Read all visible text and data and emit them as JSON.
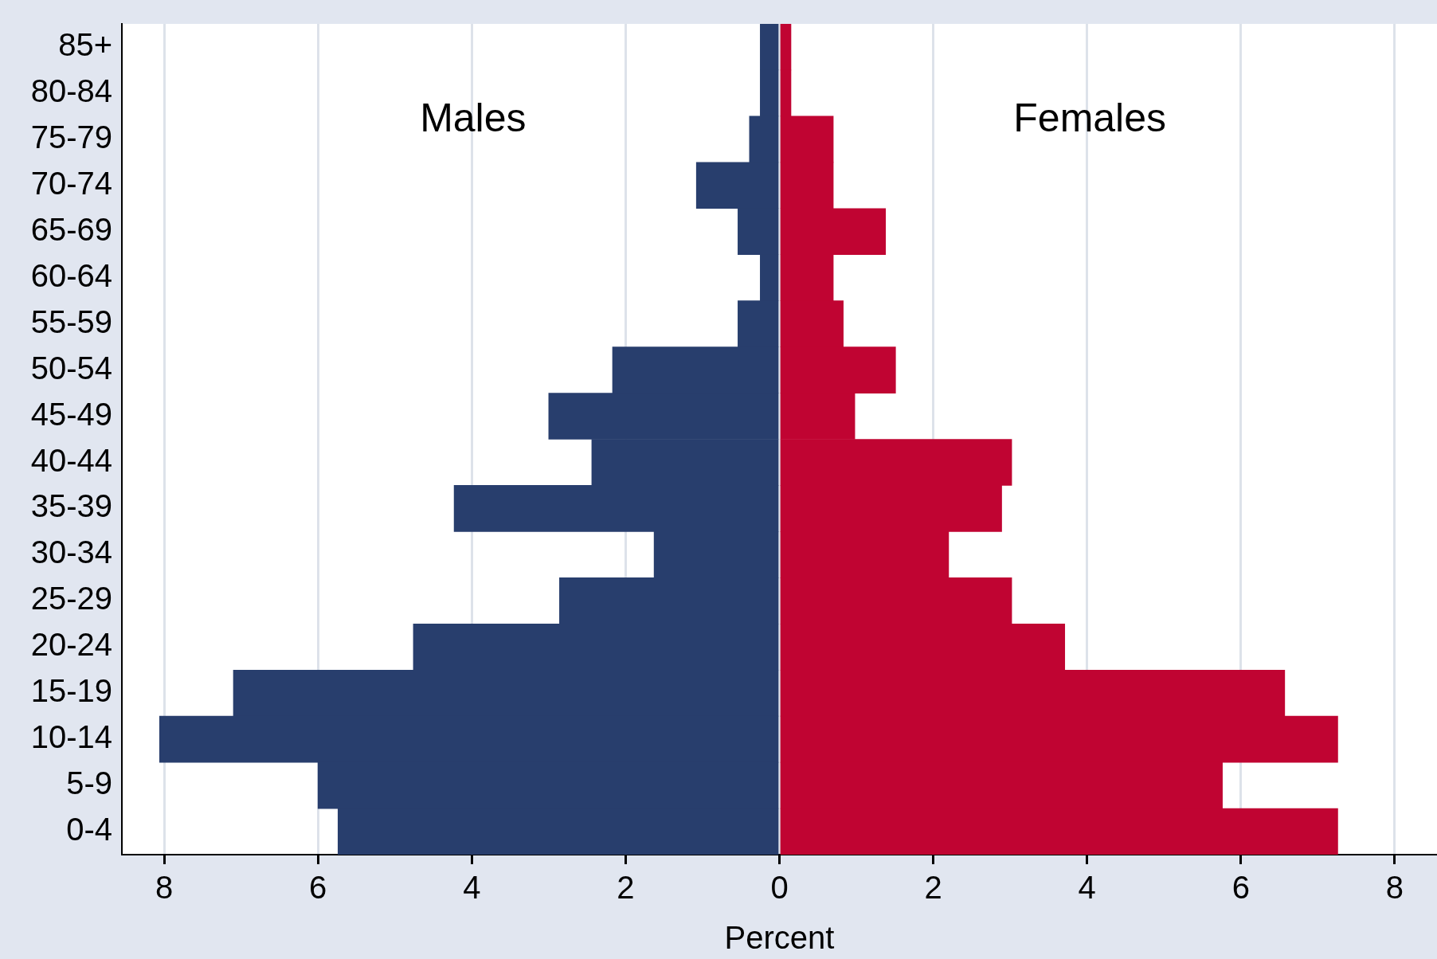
{
  "chart_data": {
    "type": "bar",
    "orientation": "horizontal",
    "stacked": true,
    "xlabel": "Percent",
    "categories": [
      "85+",
      "80-84",
      "75-79",
      "70-74",
      "65-69",
      "60-64",
      "55-59",
      "50-54",
      "45-49",
      "40-44",
      "35-39",
      "30-34",
      "25-29",
      "20-24",
      "15-19",
      "10-14",
      "5-9",
      "0-4"
    ],
    "series": [
      {
        "color": "#283e6d",
        "values": [
          -0.25,
          -0.25,
          -0.39,
          -1.08,
          -0.54,
          -0.25,
          -0.54,
          -2.17,
          -3.0,
          -2.44,
          -4.23,
          -1.63,
          -2.86,
          -4.76,
          -7.1,
          -8.06,
          -6.0,
          -5.74
        ]
      },
      {
        "color": "#c00432",
        "values": [
          0.15,
          0.15,
          0.7,
          0.7,
          1.38,
          0.7,
          0.83,
          1.51,
          0.98,
          3.02,
          2.89,
          2.2,
          3.02,
          3.71,
          6.57,
          7.26,
          5.76,
          7.26
        ]
      }
    ],
    "xlim": [
      -8.55,
      8.55
    ],
    "xticks": [
      {
        "value": -8,
        "label": "8"
      },
      {
        "value": -6,
        "label": "6"
      },
      {
        "value": -4,
        "label": "4"
      },
      {
        "value": -2,
        "label": "2"
      },
      0,
      2,
      4,
      6,
      8
    ],
    "grid": "x",
    "annotations": [
      "Males",
      "Females"
    ]
  }
}
